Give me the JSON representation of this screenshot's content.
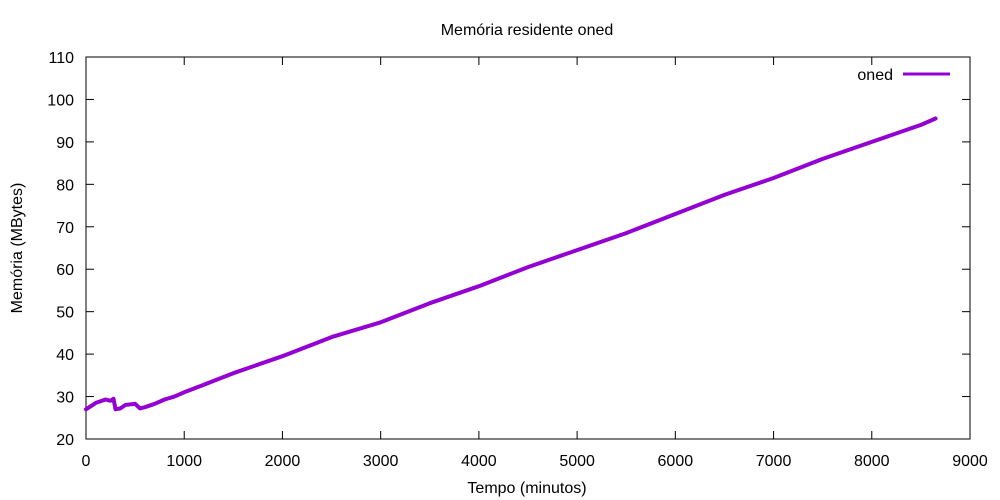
{
  "chart_data": {
    "type": "line",
    "title": "Memória residente oned",
    "xlabel": "Tempo (minutos)",
    "ylabel": "Memória (MBytes)",
    "xlim": [
      0,
      9000
    ],
    "ylim": [
      20,
      110
    ],
    "xticks": [
      0,
      1000,
      2000,
      3000,
      4000,
      5000,
      6000,
      7000,
      8000,
      9000
    ],
    "yticks": [
      20,
      30,
      40,
      50,
      60,
      70,
      80,
      90,
      100,
      110
    ],
    "grid": false,
    "legend_position": "top-right",
    "series": [
      {
        "name": "oned",
        "color": "#9400d3",
        "x": [
          0,
          100,
          200,
          250,
          280,
          300,
          350,
          400,
          500,
          550,
          600,
          700,
          800,
          900,
          1000,
          1200,
          1500,
          2000,
          2500,
          3000,
          3500,
          4000,
          4500,
          5000,
          5500,
          6000,
          6500,
          7000,
          7500,
          8000,
          8500,
          8650
        ],
        "y": [
          27,
          28.5,
          29.3,
          29,
          29.5,
          27,
          27.2,
          28,
          28.3,
          27.2,
          27.5,
          28.3,
          29.3,
          30,
          31,
          32.8,
          35.5,
          39.5,
          44,
          47.5,
          52,
          56,
          60.5,
          64.5,
          68.5,
          73,
          77.5,
          81.5,
          86,
          90,
          94,
          95.5
        ]
      }
    ]
  }
}
